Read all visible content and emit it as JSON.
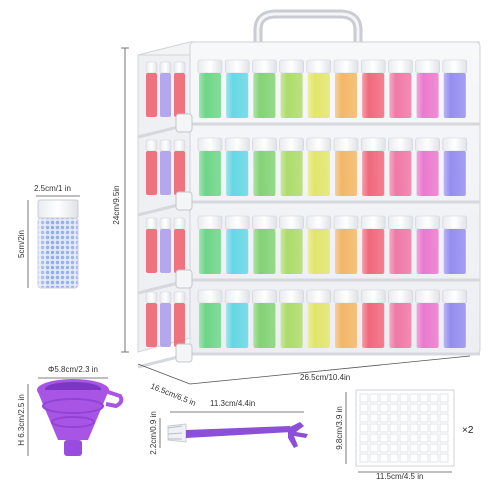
{
  "dimensions": {
    "vial_width": "2.5cm/1 in",
    "vial_height": "5cm/2in",
    "box_height": "24cm/9.5in",
    "box_depth": "16.5cm/6.5 in",
    "box_width": "26.5cm/10.4in",
    "funnel_diameter": "Φ5.8cm/2.3 in",
    "funnel_height": "H 6.3cm/2.5 in",
    "brush_length": "11.3cm/4.4in",
    "brush_width": "2.2cm/0.9 in",
    "sticker_height": "9.8cm/3.9 in",
    "sticker_width": "11.5cm/4.5 in",
    "sticker_quantity": "×2"
  },
  "vial_colors": [
    "#ef5d6a",
    "#a99ae9",
    "#63d27f",
    "#5ad4e3",
    "#79cf6a",
    "#a7d960",
    "#e0e45f",
    "#f2b25a",
    "#f05c72",
    "#ef6e9e",
    "#e96fc9",
    "#8d84ef"
  ],
  "accessory_colors": {
    "funnel": "#a855e6",
    "brush": "#8c4fd8",
    "beads": "#9bb7ee"
  }
}
